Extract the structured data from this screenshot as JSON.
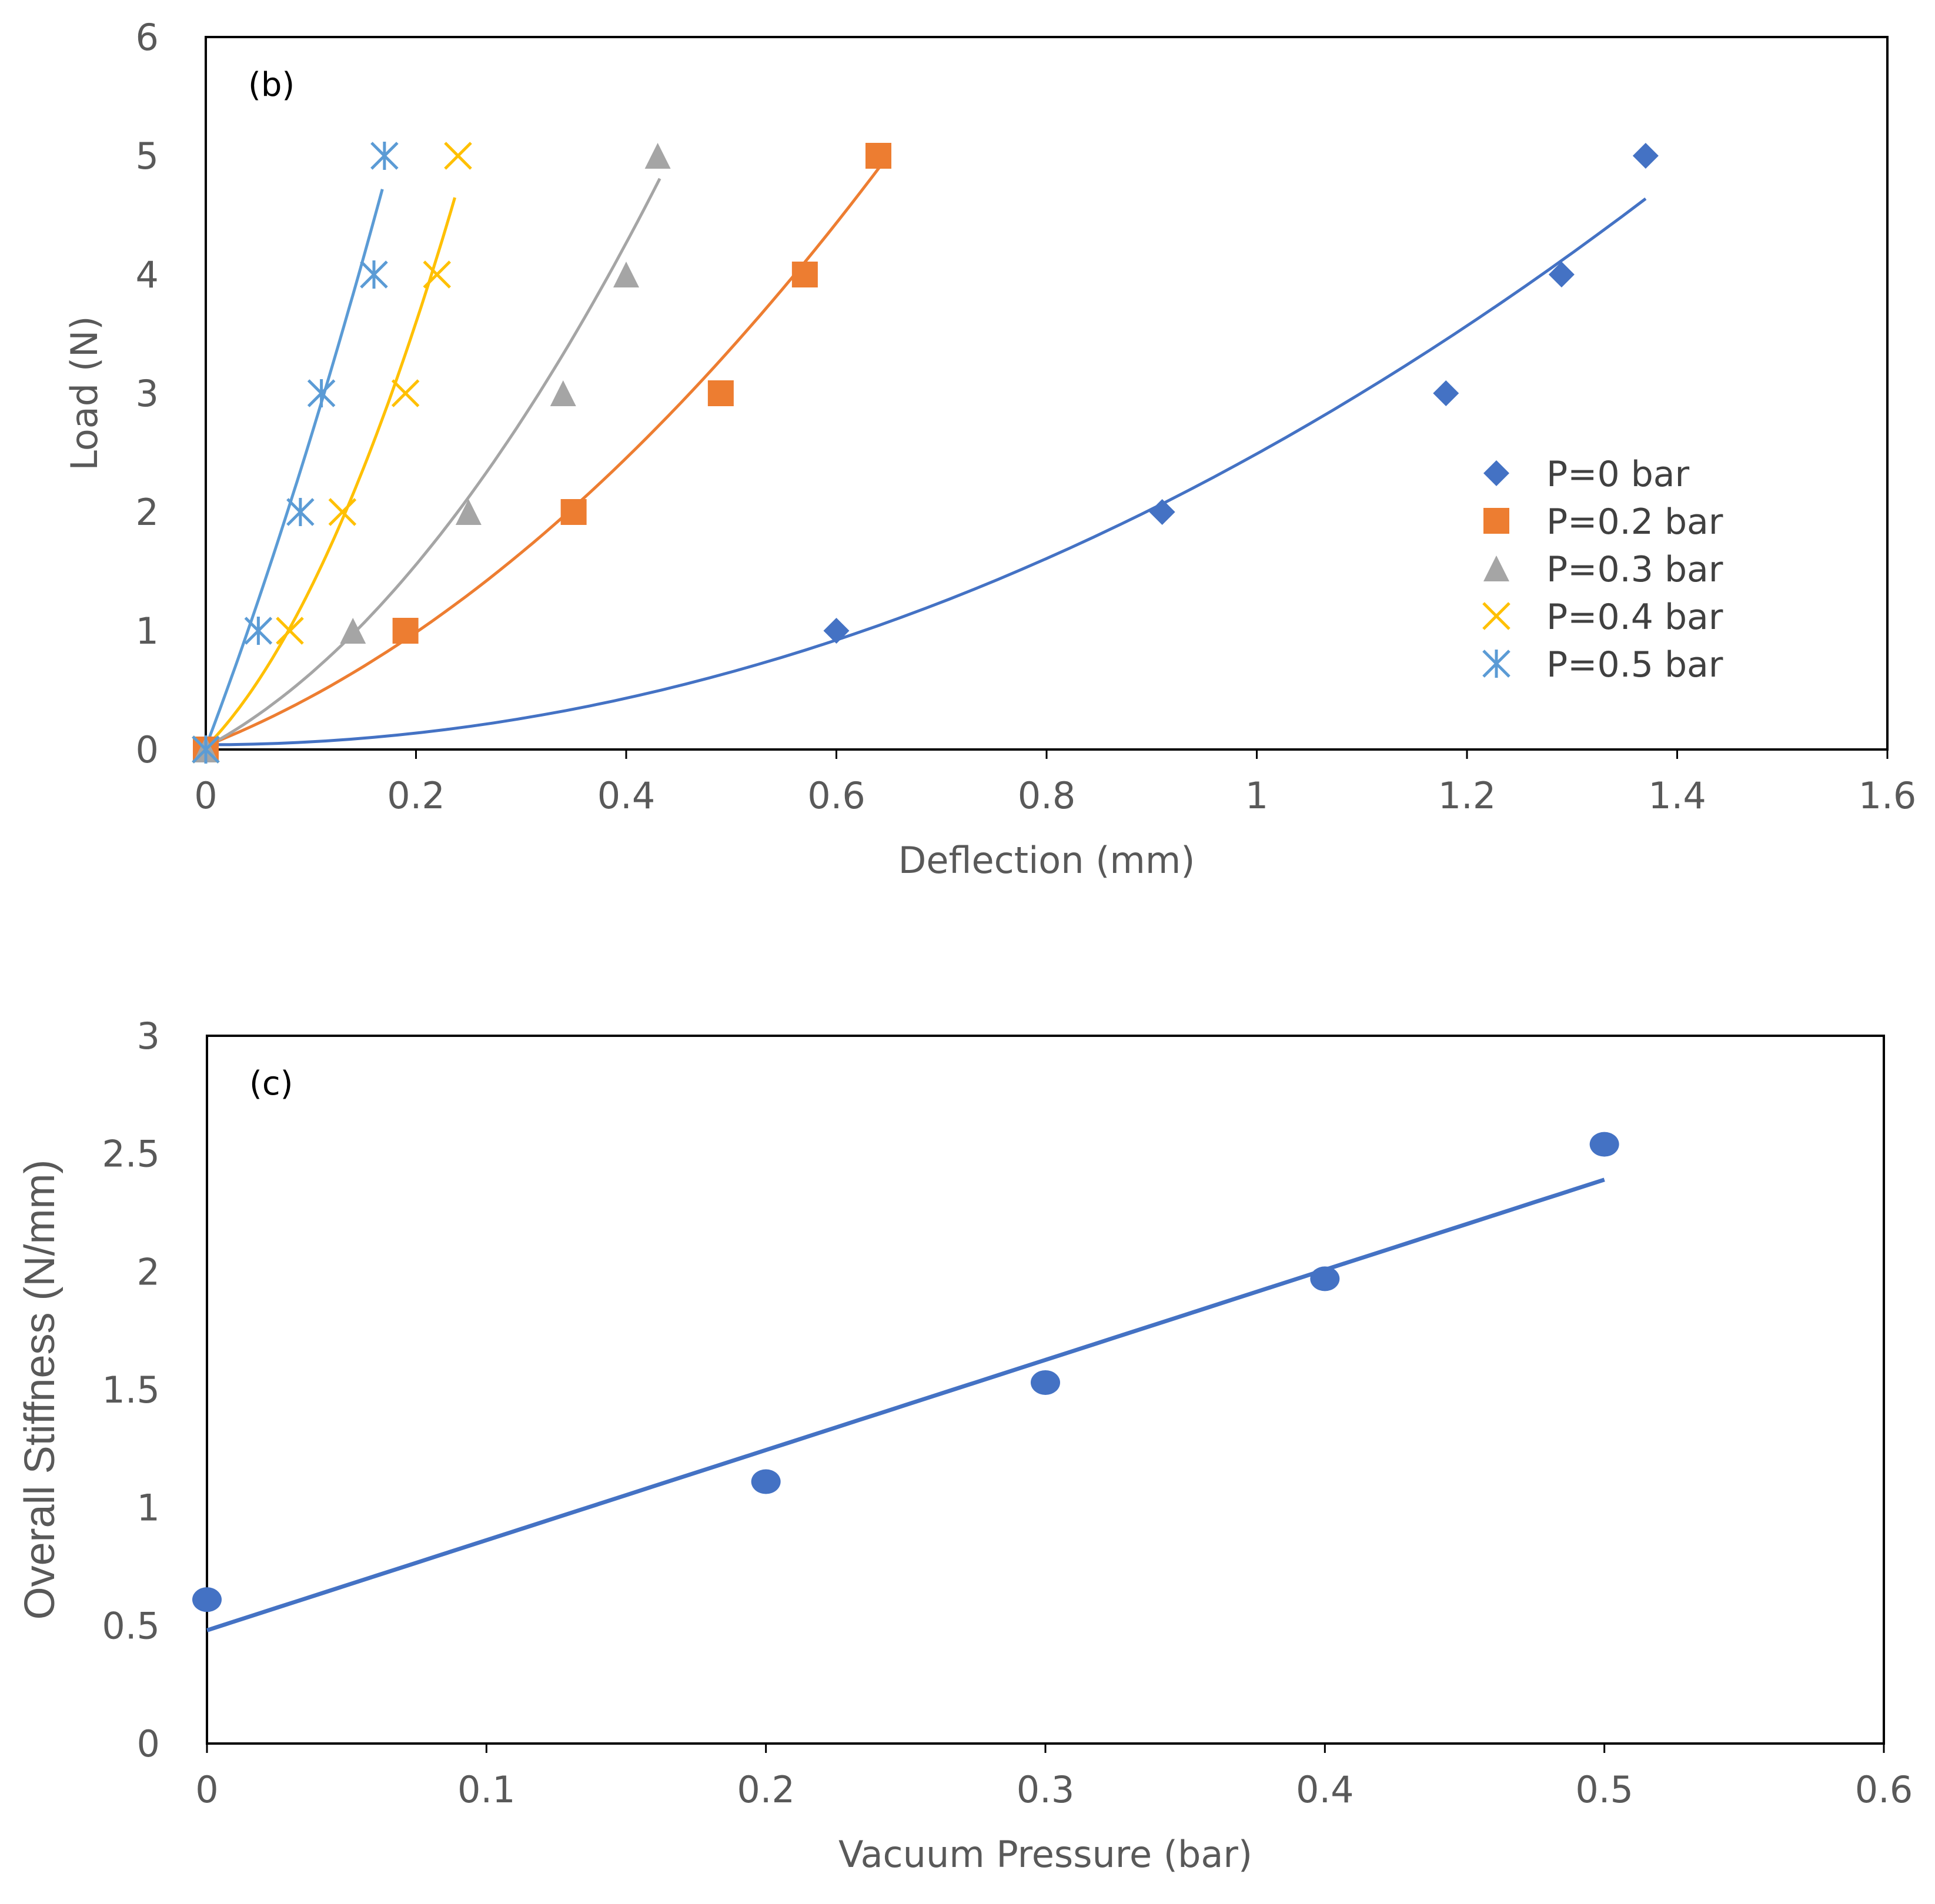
{
  "chart_data": [
    {
      "type": "scatter",
      "panel_label": "(b)",
      "title": "",
      "xlabel": "Deflection (mm)",
      "ylabel": "Load (N)",
      "xlim": [
        0,
        1.6
      ],
      "ylim": [
        0,
        6
      ],
      "xticks": [
        "0",
        "0.2",
        "0.4",
        "0.6",
        "0.8",
        "1",
        "1.2",
        "1.4",
        "1.6"
      ],
      "yticks": [
        "0",
        "1",
        "2",
        "3",
        "4",
        "5",
        "6"
      ],
      "grid": false,
      "legend_position": "right",
      "series": [
        {
          "name": "P=0 bar",
          "marker": "diamond",
          "color": "#4472C4",
          "x": [
            0,
            0.6,
            0.91,
            1.18,
            1.29,
            1.37
          ],
          "y": [
            0,
            1,
            2,
            3,
            4,
            5
          ],
          "trendline": {
            "type": "polynomial",
            "coef": [
              0.04,
              0.0,
              2.45
            ],
            "x_range": [
              0,
              1.37
            ]
          }
        },
        {
          "name": "P=0.2 bar",
          "marker": "square",
          "color": "#ED7D31",
          "x": [
            0,
            0.19,
            0.35,
            0.49,
            0.57,
            0.64
          ],
          "y": [
            0,
            1,
            2,
            3,
            4,
            5
          ],
          "trendline": {
            "type": "polynomial",
            "coef": [
              0.03,
              3.5,
              6.4
            ],
            "x_range": [
              0,
              0.645
            ]
          }
        },
        {
          "name": "P=0.3 bar",
          "marker": "triangle",
          "color": "#A5A5A5",
          "x": [
            0,
            0.14,
            0.25,
            0.34,
            0.4,
            0.43
          ],
          "y": [
            0,
            1,
            2,
            3,
            4,
            5
          ],
          "trendline": {
            "type": "polynomial",
            "coef": [
              0.02,
              4.75,
              14.66
            ],
            "x_range": [
              0,
              0.432
            ]
          }
        },
        {
          "name": "P=0.4 bar",
          "marker": "x",
          "color": "#FFC000",
          "x": [
            0,
            0.08,
            0.13,
            0.19,
            0.22,
            0.24
          ],
          "y": [
            0,
            1,
            2,
            3,
            4,
            5
          ],
          "trendline": {
            "type": "polynomial",
            "coef": [
              0.02,
              8.98,
              44.5
            ],
            "x_range": [
              0,
              0.237
            ]
          }
        },
        {
          "name": "P=0.5 bar",
          "marker": "asterisk",
          "color": "#5B9BD5",
          "x": [
            0,
            0.05,
            0.09,
            0.11,
            0.16,
            0.17
          ],
          "y": [
            0,
            1,
            2,
            3,
            4,
            5
          ],
          "trendline": {
            "type": "polynomial",
            "coef": [
              0.02,
              23.4,
              27.2
            ],
            "x_range": [
              0,
              0.168
            ]
          }
        }
      ]
    },
    {
      "type": "scatter",
      "panel_label": "(c)",
      "title": "",
      "xlabel": "Vacuum Pressure (bar)",
      "ylabel": "Overall Stiffness (N/mm)",
      "xlim": [
        0,
        0.6
      ],
      "ylim": [
        0,
        3
      ],
      "xticks": [
        "0",
        "0.1",
        "0.2",
        "0.3",
        "0.4",
        "0.5",
        "0.6"
      ],
      "yticks": [
        "0",
        "0.5",
        "1",
        "1.5",
        "2",
        "2.5",
        "3"
      ],
      "grid": false,
      "series": [
        {
          "name": "Overall Stiffness",
          "marker": "circle",
          "color": "#4472C4",
          "x": [
            0,
            0.2,
            0.3,
            0.4,
            0.5
          ],
          "y": [
            0.61,
            1.11,
            1.53,
            1.97,
            2.54
          ],
          "trendline": {
            "type": "linear",
            "coef": [
              0.48,
              3.82
            ],
            "x_range": [
              0,
              0.5
            ]
          }
        }
      ]
    }
  ]
}
